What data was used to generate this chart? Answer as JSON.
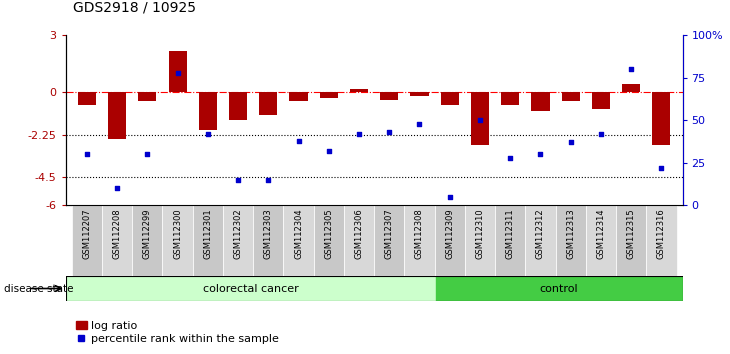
{
  "title": "GDS2918 / 10925",
  "samples": [
    "GSM112207",
    "GSM112208",
    "GSM112299",
    "GSM112300",
    "GSM112301",
    "GSM112302",
    "GSM112303",
    "GSM112304",
    "GSM112305",
    "GSM112306",
    "GSM112307",
    "GSM112308",
    "GSM112309",
    "GSM112310",
    "GSM112311",
    "GSM112312",
    "GSM112313",
    "GSM112314",
    "GSM112315",
    "GSM112316"
  ],
  "log_ratio": [
    -0.7,
    -2.5,
    -0.5,
    2.2,
    -2.0,
    -1.5,
    -1.2,
    -0.5,
    -0.3,
    0.15,
    -0.4,
    -0.2,
    -0.7,
    -2.8,
    -0.7,
    -1.0,
    -0.5,
    -0.9,
    0.4,
    -2.8
  ],
  "percentile_rank": [
    30,
    10,
    30,
    78,
    42,
    15,
    15,
    38,
    32,
    42,
    43,
    48,
    5,
    50,
    28,
    30,
    37,
    42,
    80,
    22
  ],
  "colorectal_count": 12,
  "control_count": 8,
  "ylim_left": [
    -6,
    3
  ],
  "ylim_right": [
    0,
    100
  ],
  "yticks_left": [
    3,
    0,
    -2.25,
    -4.5,
    -6
  ],
  "yticks_right": [
    100,
    75,
    50,
    25,
    0
  ],
  "bar_color": "#AA0000",
  "dot_color": "#0000CC",
  "cancer_color": "#CCFFCC",
  "control_color": "#44CC44",
  "cancer_label": "colorectal cancer",
  "control_label": "control",
  "disease_state_label": "disease state",
  "legend_bar": "log ratio",
  "legend_dot": "percentile rank within the sample",
  "title_fontsize": 10,
  "tick_fontsize": 8
}
